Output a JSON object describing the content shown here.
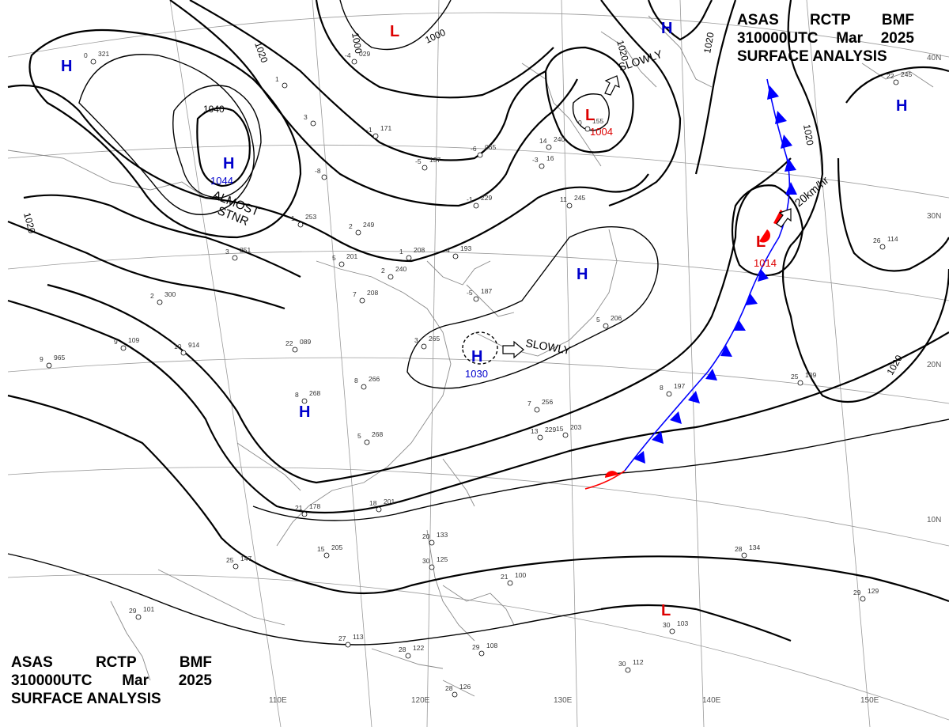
{
  "header_top": {
    "line1": [
      "ASAS",
      "RCTP",
      "BMF"
    ],
    "line2": [
      "310000UTC",
      "Mar",
      "2025"
    ],
    "line3": "SURFACE ANALYSIS"
  },
  "header_bottom": {
    "line1": [
      "ASAS",
      "RCTP",
      "BMF"
    ],
    "line2": [
      "310000UTC",
      "Mar",
      "2025"
    ],
    "line3": "SURFACE ANALYSIS"
  },
  "colors": {
    "high": "#0000cc",
    "low": "#dd0000",
    "cold_front": "#0000ff",
    "warm_front": "#ff0000",
    "isobar": "#000000",
    "grid": "#9a9a9a"
  },
  "pressure_systems": [
    {
      "type": "H",
      "pressure": ""
    },
    {
      "type": "L",
      "pressure": ""
    },
    {
      "type": "H",
      "pressure": ""
    },
    {
      "type": "L",
      "pressure": "1004"
    },
    {
      "type": "H",
      "pressure": ""
    },
    {
      "type": "H",
      "pressure": "1044"
    },
    {
      "type": "H",
      "pressure": ""
    },
    {
      "type": "H",
      "pressure": "1030"
    },
    {
      "type": "L",
      "pressure": "1014"
    },
    {
      "type": "H",
      "pressure": ""
    },
    {
      "type": "L",
      "pressure": ""
    }
  ],
  "isobar_labels": [
    "1020",
    "1000",
    "1000",
    "1020",
    "1020",
    "1040",
    "1020",
    "1020",
    "1020"
  ],
  "motion_labels": {
    "almost": "ALMOST",
    "stnr": "STNR",
    "slowly1": "SLOWLY",
    "slowly2": "SLOWLY",
    "speed": "20km/hr"
  },
  "longitude_labels": [
    "110E",
    "120E",
    "130E",
    "140E",
    "150E"
  ],
  "latitude_labels": [
    "40N",
    "30N",
    "20N",
    "10N"
  ],
  "station_plots": [
    {
      "a": "0",
      "b": "321"
    },
    {
      "a": "-4",
      "b": "029"
    },
    {
      "a": "1",
      "b": ""
    },
    {
      "a": "3",
      "b": ""
    },
    {
      "a": "-1",
      "b": "171"
    },
    {
      "a": "-6",
      "b": "065"
    },
    {
      "a": "-5",
      "b": "137"
    },
    {
      "a": "-3",
      "b": "16"
    },
    {
      "a": "-8",
      "b": ""
    },
    {
      "a": "1",
      "b": "253"
    },
    {
      "a": "2",
      "b": "249"
    },
    {
      "a": "1",
      "b": "208"
    },
    {
      "a": "4",
      "b": "193"
    },
    {
      "a": "5",
      "b": "201"
    },
    {
      "a": "2",
      "b": "240"
    },
    {
      "a": "7",
      "b": "208"
    },
    {
      "a": "3",
      "b": "251"
    },
    {
      "a": "2",
      "b": "300"
    },
    {
      "a": "9",
      "b": "109"
    },
    {
      "a": "10",
      "b": "914"
    },
    {
      "a": "9",
      "b": "965"
    },
    {
      "a": "22",
      "b": "089"
    },
    {
      "a": "8",
      "b": "266"
    },
    {
      "a": "8",
      "b": "268"
    },
    {
      "a": "5",
      "b": "268"
    },
    {
      "a": "7",
      "b": "256"
    },
    {
      "a": "13",
      "b": "229"
    },
    {
      "a": "15",
      "b": "203"
    },
    {
      "a": "8",
      "b": "197"
    },
    {
      "a": "18",
      "b": "201"
    },
    {
      "a": "21",
      "b": "178"
    },
    {
      "a": "15",
      "b": "205"
    },
    {
      "a": "25",
      "b": "147"
    },
    {
      "a": "20",
      "b": "133"
    },
    {
      "a": "30",
      "b": "125"
    },
    {
      "a": "21",
      "b": "100"
    },
    {
      "a": "28",
      "b": "134"
    },
    {
      "a": "29",
      "b": "129"
    },
    {
      "a": "30",
      "b": "103"
    },
    {
      "a": "30",
      "b": "112"
    },
    {
      "a": "29",
      "b": "101"
    },
    {
      "a": "29",
      "b": "108"
    },
    {
      "a": "28",
      "b": "122"
    },
    {
      "a": "27",
      "b": "113"
    },
    {
      "a": "28",
      "b": "126"
    },
    {
      "a": "26",
      "b": "114"
    },
    {
      "a": "25",
      "b": "109"
    },
    {
      "a": "22",
      "b": "245"
    },
    {
      "a": "5",
      "b": "206"
    },
    {
      "a": "11",
      "b": "245"
    },
    {
      "a": "14",
      "b": "240"
    },
    {
      "a": "-1",
      "b": "229"
    },
    {
      "a": "-5",
      "b": "187"
    },
    {
      "a": "0",
      "b": "155"
    },
    {
      "a": "3",
      "b": "265"
    }
  ]
}
